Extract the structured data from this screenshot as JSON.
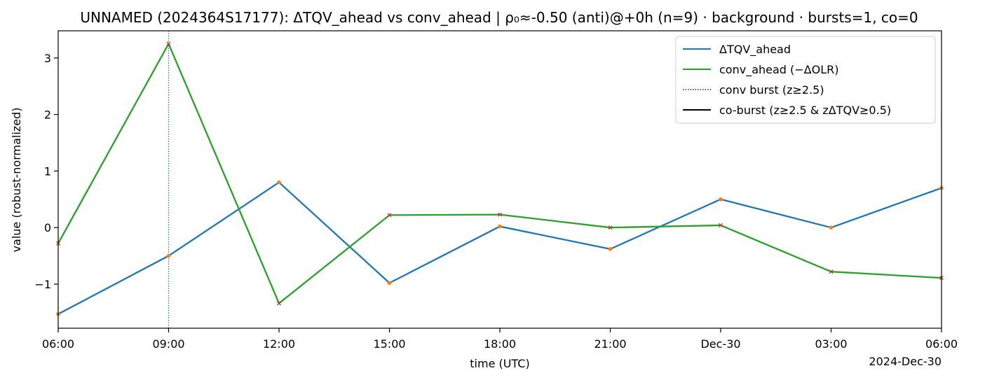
{
  "chart_data": {
    "type": "line",
    "title": "UNNAMED (2024364S17177): ΔTQV_ahead vs conv_ahead | ρ₀≈-0.50 (anti)@+0h (n=9) · background · bursts=1, co=0",
    "xlabel": "time (UTC)",
    "ylabel": "value (robust-normalized)",
    "x_offset_label": "2024-Dec-30",
    "x": [
      "2024-12-29 06:00",
      "2024-12-29 09:00",
      "2024-12-29 12:00",
      "2024-12-29 15:00",
      "2024-12-29 18:00",
      "2024-12-29 21:00",
      "2024-12-30 00:00",
      "2024-12-30 03:00",
      "2024-12-30 06:00"
    ],
    "x_tick_labels": [
      "06:00",
      "09:00",
      "12:00",
      "15:00",
      "18:00",
      "21:00",
      "Dec-30",
      "03:00",
      "06:00"
    ],
    "ylim": [
      -1.78,
      3.48
    ],
    "y_ticks": [
      -1,
      0,
      1,
      2,
      3
    ],
    "y_tick_labels": [
      "−1",
      "0",
      "1",
      "2",
      "3"
    ],
    "grid": false,
    "legend_position": "top-right",
    "series": [
      {
        "name": "ΔTQV_ahead",
        "color": "#1f77b4",
        "marker_color": "#ff7f0e",
        "marker": "dot",
        "values": [
          -1.53,
          -0.5,
          0.8,
          -0.98,
          0.02,
          -0.38,
          0.5,
          0.0,
          0.7
        ]
      },
      {
        "name": "conv_ahead (−ΔOLR)",
        "color": "#2ca02c",
        "marker_color": "#d62728",
        "marker": "x",
        "values": [
          -0.28,
          3.25,
          -1.34,
          0.22,
          0.23,
          0.0,
          0.04,
          -0.78,
          -0.89
        ]
      }
    ],
    "bursts": [
      {
        "x": "2024-12-29 09:00",
        "color": "#1f77b4"
      }
    ],
    "legend": [
      {
        "label": "ΔTQV_ahead",
        "style": "solid",
        "color": "#1f77b4"
      },
      {
        "label": "conv_ahead (−ΔOLR)",
        "style": "solid",
        "color": "#2ca02c"
      },
      {
        "label": "conv burst (z≥2.5)",
        "style": "dotted",
        "color": "#000000"
      },
      {
        "label": "co-burst (z≥2.5 & zΔTQV≥0.5)",
        "style": "solid",
        "color": "#000000"
      }
    ]
  }
}
